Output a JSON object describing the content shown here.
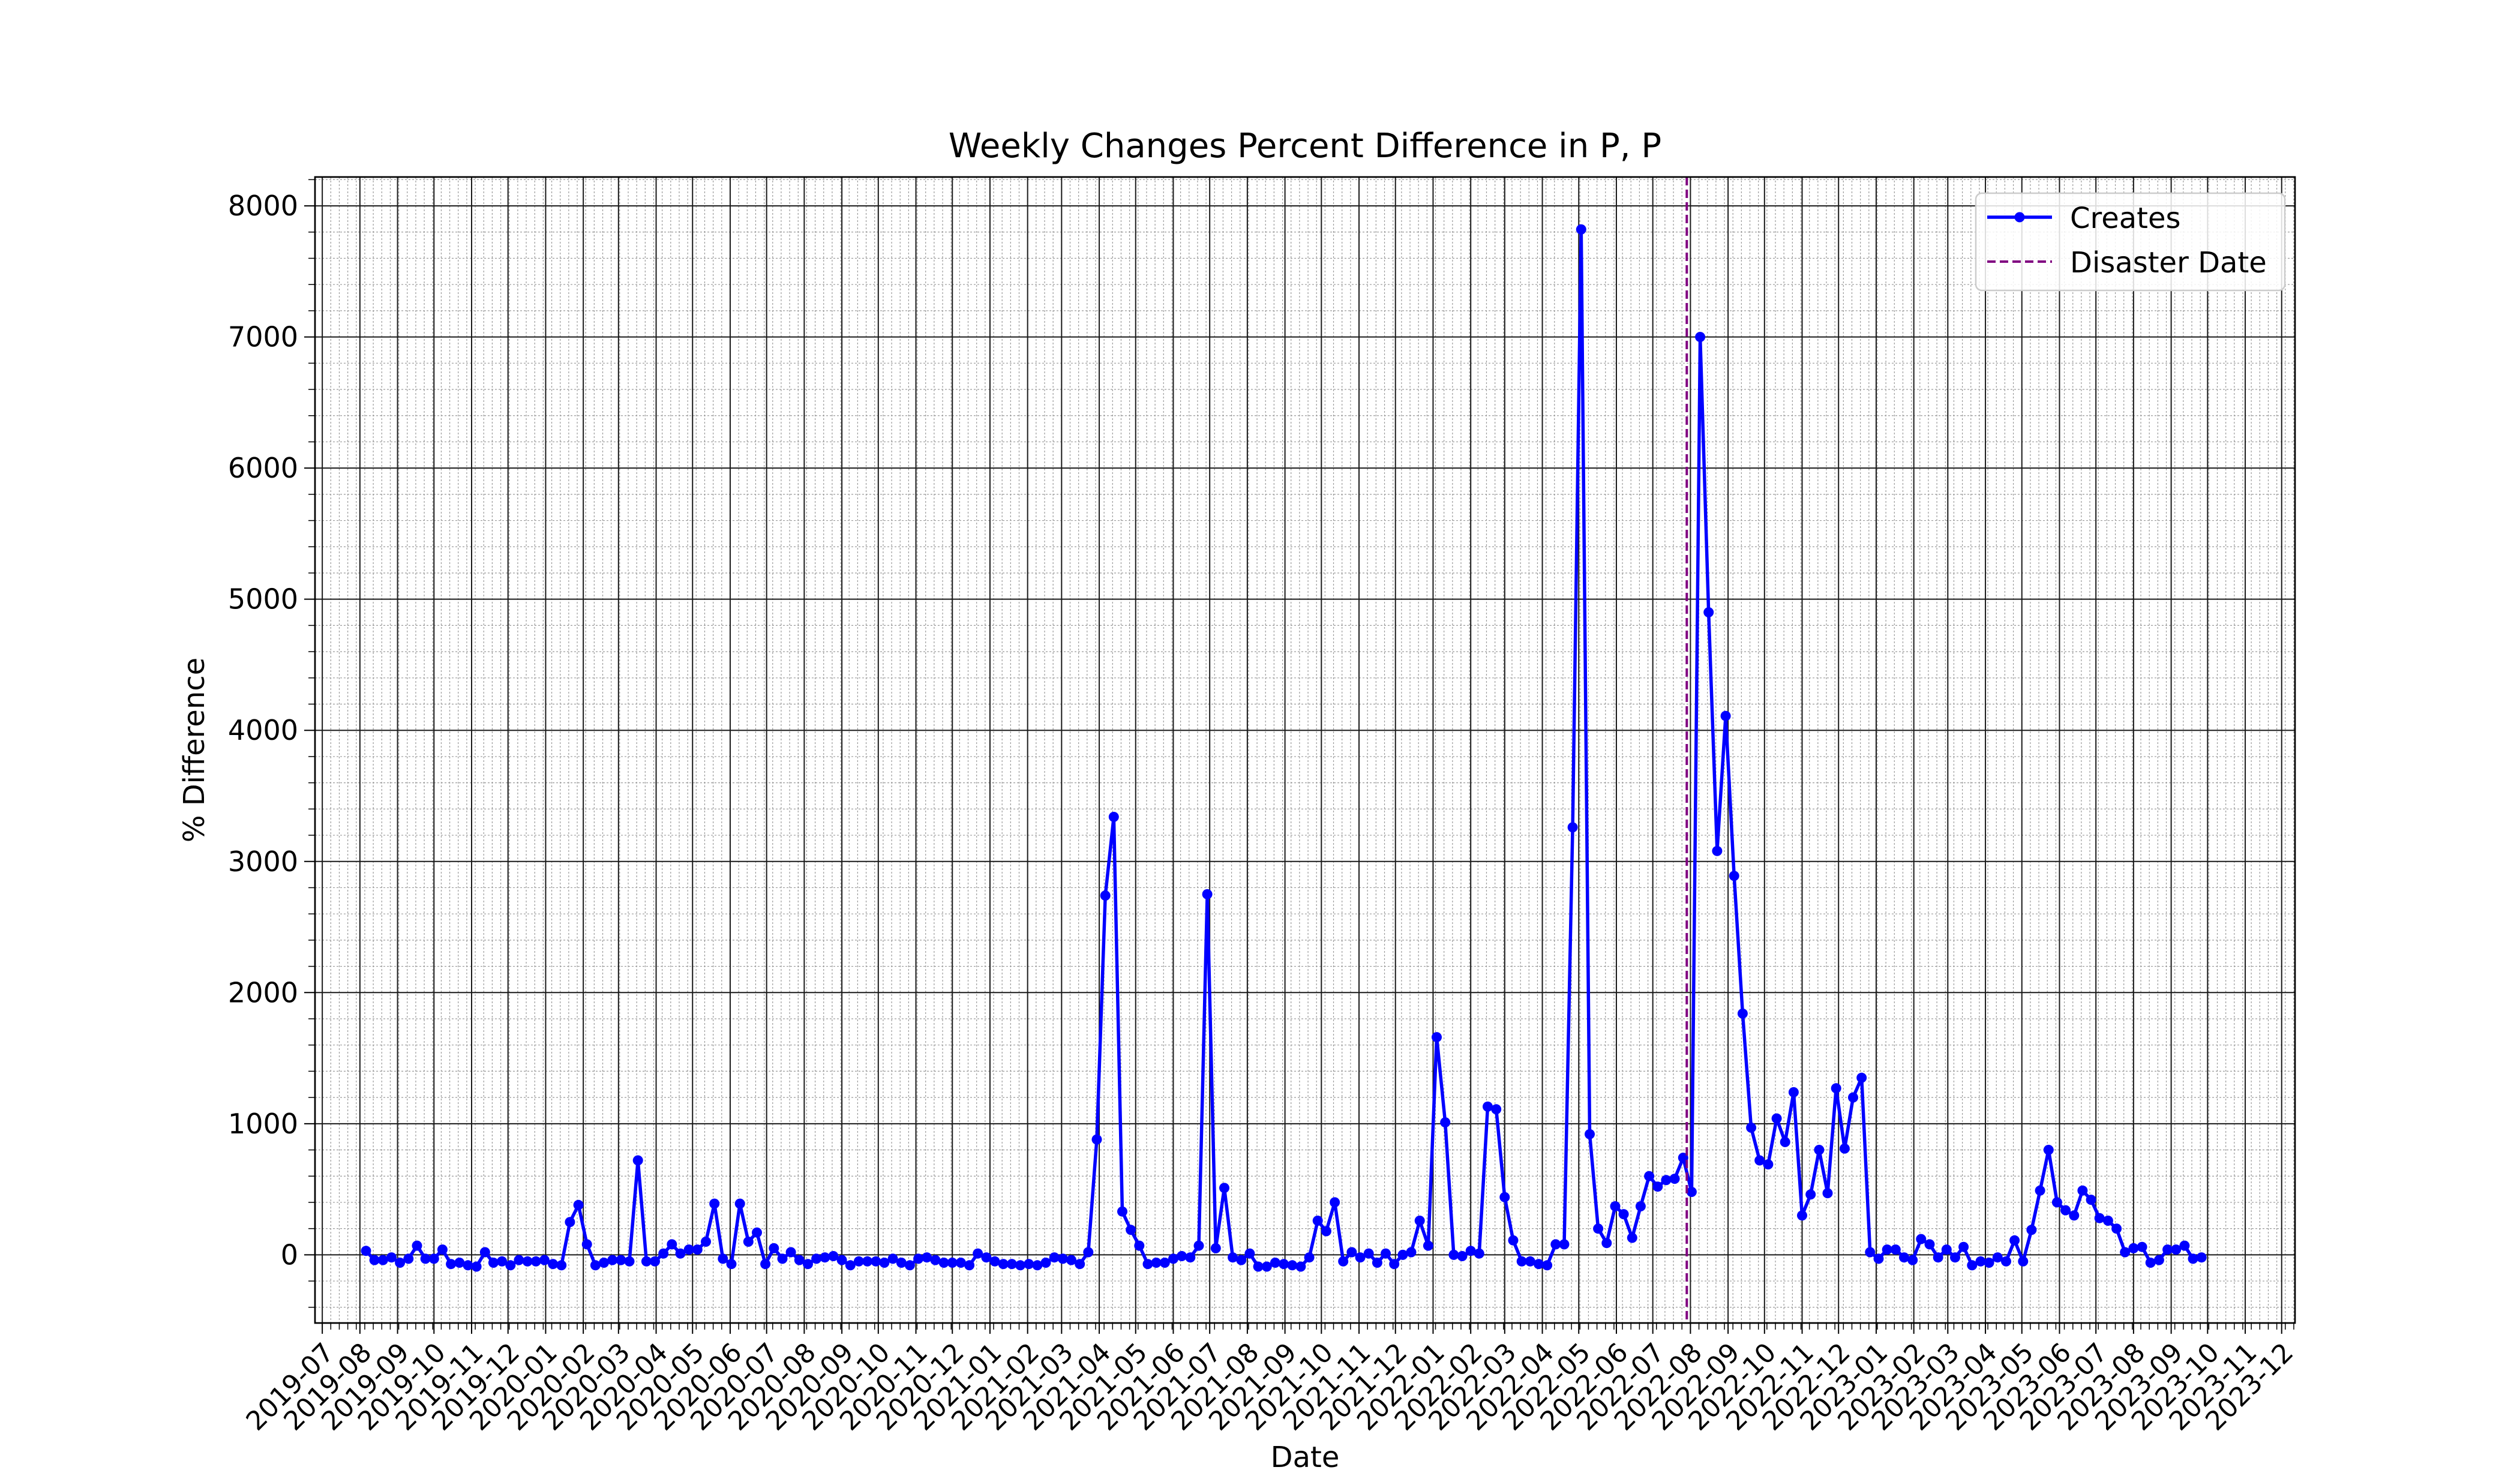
{
  "chart_data": {
    "type": "line",
    "title": "Weekly Changes Percent Difference in P, P",
    "xlabel": "Date",
    "ylabel": "% Difference",
    "x_axis_type": "date",
    "xlim": [
      "2019-06-25",
      "2023-12-12"
    ],
    "ylim": [
      -520,
      8220
    ],
    "grid": true,
    "legend_position": "upper right",
    "x_tick_labels": [
      "2019-07",
      "2019-08",
      "2019-09",
      "2019-10",
      "2019-11",
      "2019-12",
      "2020-01",
      "2020-02",
      "2020-03",
      "2020-04",
      "2020-05",
      "2020-06",
      "2020-07",
      "2020-08",
      "2020-09",
      "2020-10",
      "2020-11",
      "2020-12",
      "2021-01",
      "2021-02",
      "2021-03",
      "2021-04",
      "2021-05",
      "2021-06",
      "2021-07",
      "2021-08",
      "2021-09",
      "2021-10",
      "2021-11",
      "2021-12",
      "2022-01",
      "2022-02",
      "2022-03",
      "2022-04",
      "2022-05",
      "2022-06",
      "2022-07",
      "2022-08",
      "2022-09",
      "2022-10",
      "2022-11",
      "2022-12",
      "2023-01",
      "2023-02",
      "2023-03",
      "2023-04",
      "2023-05",
      "2023-06",
      "2023-07",
      "2023-08",
      "2023-09",
      "2023-10",
      "2023-11",
      "2023-12"
    ],
    "y_tick_labels": [
      "0",
      "1000",
      "2000",
      "3000",
      "4000",
      "5000",
      "6000",
      "7000",
      "8000"
    ],
    "series": [
      {
        "name": "Creates",
        "color": "#0000ff",
        "marker": "circle",
        "x_start": "2019-08-06",
        "x_step_days": 7,
        "values": [
          30,
          -40,
          -40,
          -20,
          -60,
          -30,
          70,
          -30,
          -30,
          40,
          -70,
          -60,
          -80,
          -90,
          20,
          -60,
          -50,
          -80,
          -40,
          -50,
          -50,
          -40,
          -70,
          -80,
          250,
          380,
          80,
          -80,
          -60,
          -40,
          -40,
          -50,
          720,
          -50,
          -50,
          10,
          80,
          10,
          40,
          40,
          100,
          390,
          -30,
          -70,
          390,
          100,
          170,
          -70,
          50,
          -30,
          20,
          -40,
          -70,
          -30,
          -20,
          -10,
          -40,
          -80,
          -50,
          -50,
          -50,
          -60,
          -30,
          -60,
          -80,
          -30,
          -20,
          -40,
          -60,
          -60,
          -60,
          -80,
          10,
          -20,
          -50,
          -70,
          -70,
          -80,
          -70,
          -80,
          -60,
          -20,
          -30,
          -40,
          -70,
          20,
          880,
          2740,
          3340,
          330,
          190,
          70,
          -70,
          -60,
          -60,
          -30,
          -10,
          -20,
          70,
          2750,
          50,
          510,
          -20,
          -40,
          10,
          -90,
          -90,
          -60,
          -70,
          -80,
          -90,
          -20,
          260,
          180,
          400,
          -50,
          20,
          -20,
          10,
          -60,
          10,
          -70,
          0,
          20,
          260,
          70,
          1660,
          1010,
          0,
          -10,
          30,
          10,
          1130,
          1110,
          440,
          110,
          -50,
          -50,
          -70,
          -80,
          80,
          80,
          3260,
          7820,
          920,
          200,
          90,
          370,
          310,
          130,
          370,
          600,
          520,
          570,
          580,
          740,
          480,
          7000,
          4900,
          3080,
          4110,
          2890,
          1840,
          970,
          720,
          690,
          1040,
          860,
          1240,
          300,
          460,
          800,
          470,
          1270,
          810,
          1200,
          1350,
          20,
          -30,
          40,
          40,
          -20,
          -40,
          120,
          80,
          -20,
          40,
          -20,
          60,
          -80,
          -50,
          -60,
          -20,
          -50,
          110,
          -50,
          190,
          490,
          800,
          400,
          340,
          300,
          490,
          420,
          280,
          260,
          200,
          20,
          50,
          60,
          -60,
          -40,
          40,
          40,
          70,
          -30,
          -20
        ]
      }
    ],
    "vlines": [
      {
        "name": "Disaster Date",
        "date": "2022-07-29",
        "color": "#800080",
        "style": "dashed"
      }
    ],
    "legend": [
      {
        "label": "Creates",
        "color": "#0000ff",
        "style": "line-marker"
      },
      {
        "label": "Disaster Date",
        "color": "#800080",
        "style": "dashed"
      }
    ]
  }
}
